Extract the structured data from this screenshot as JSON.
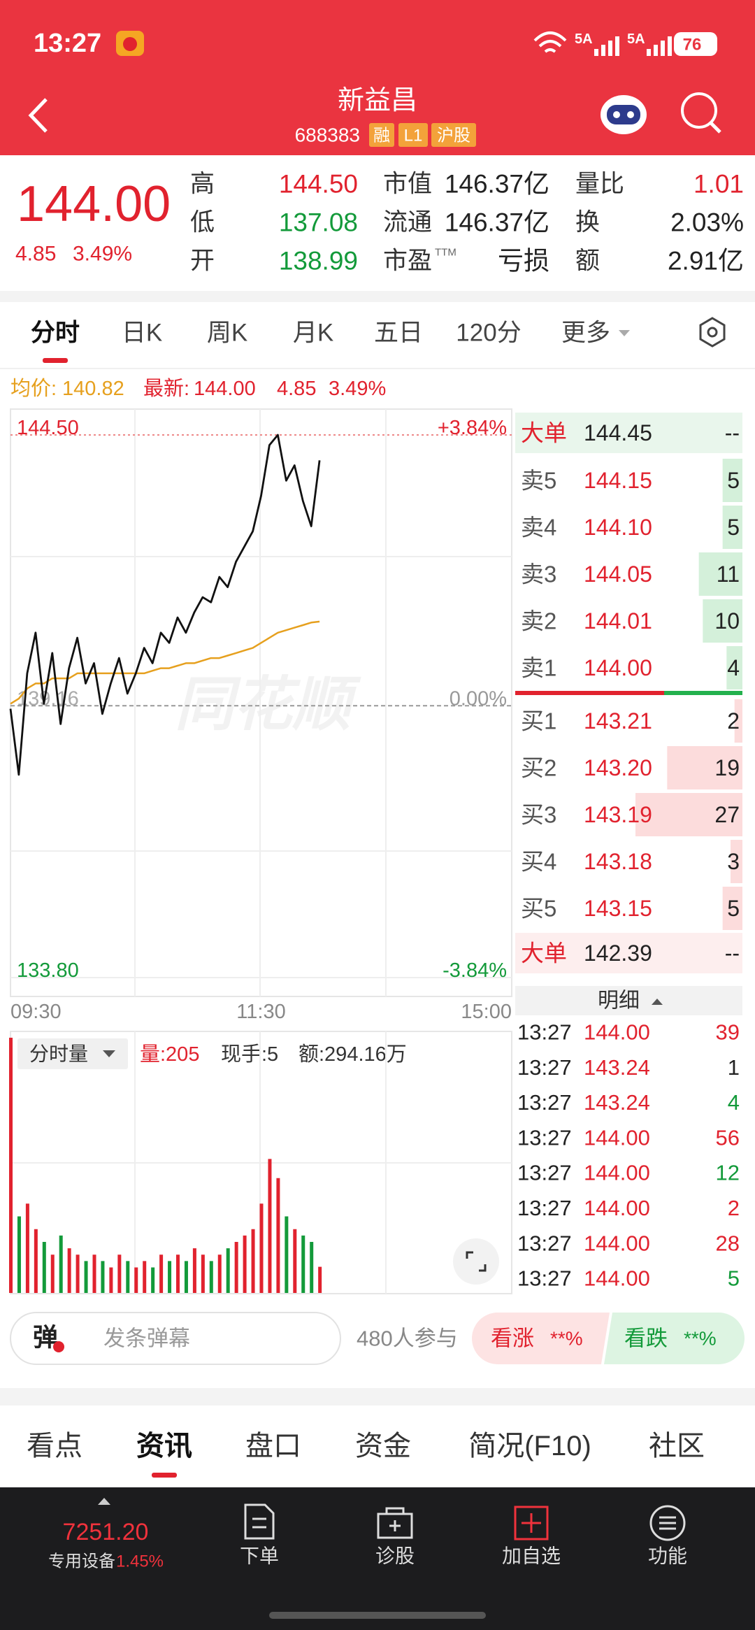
{
  "status_bar": {
    "time": "13:27",
    "network": [
      "5A",
      "5A"
    ],
    "battery": "76"
  },
  "header": {
    "title": "新益昌",
    "code": "688383",
    "tags": [
      "融",
      "L1",
      "沪股"
    ]
  },
  "quote": {
    "price": "144.00",
    "change": "4.85",
    "change_pct": "3.49%",
    "stats": [
      {
        "label": "高",
        "value": "144.50",
        "color": "#e1222e"
      },
      {
        "label": "低",
        "value": "137.08",
        "color": "#139a3a"
      },
      {
        "label": "开",
        "value": "138.99",
        "color": "#139a3a"
      },
      {
        "label": "市值",
        "value": "146.37亿",
        "color": "#222222"
      },
      {
        "label": "流通",
        "value": "146.37亿",
        "color": "#222222"
      },
      {
        "label": "市盈",
        "sup": "TTM",
        "value": "亏损",
        "color": "#222222"
      },
      {
        "label": "量比",
        "value": "1.01",
        "color": "#e1222e"
      },
      {
        "label": "换",
        "value": "2.03%",
        "color": "#222222"
      },
      {
        "label": "额",
        "value": "2.91亿",
        "color": "#222222"
      }
    ]
  },
  "tabs": {
    "items": [
      "分时",
      "日K",
      "周K",
      "月K",
      "五日",
      "120分",
      "更多"
    ],
    "active": 0
  },
  "intraday": {
    "legend": {
      "avg_label": "均价:",
      "avg": "140.82",
      "last_label": "最新:",
      "last": "144.00",
      "change": "4.85",
      "change_pct": "3.49%"
    },
    "watermark": "同花顺",
    "ylim": [
      133.8,
      144.5
    ],
    "yticks": [
      {
        "value": 144.5,
        "label": "144.50"
      },
      {
        "value": 139.16,
        "label": "139.16"
      },
      {
        "value": 133.8,
        "label": "133.80"
      }
    ],
    "pct_ticks": [
      {
        "value": 3.84,
        "label": "+3.84%"
      },
      {
        "value": 0,
        "label": "0.00%"
      },
      {
        "value": -3.84,
        "label": "-3.84%"
      }
    ],
    "xticks": [
      "09:30",
      "11:30",
      "15:00"
    ],
    "price": {
      "color": "#111111",
      "values": [
        139.1,
        137.8,
        139.8,
        140.6,
        139.2,
        140.2,
        138.8,
        139.9,
        140.5,
        139.6,
        140.0,
        139.0,
        139.6,
        140.1,
        139.4,
        139.8,
        140.3,
        140.0,
        140.6,
        140.4,
        140.9,
        140.6,
        141.0,
        141.3,
        141.2,
        141.7,
        141.5,
        142.0,
        142.3,
        142.6,
        143.3,
        144.3,
        144.5,
        143.6,
        143.9,
        143.2,
        142.7,
        144.0
      ]
    },
    "avg": {
      "color": "#e6a01e",
      "values": [
        139.2,
        139.3,
        139.5,
        139.6,
        139.6,
        139.7,
        139.7,
        139.7,
        139.8,
        139.8,
        139.8,
        139.8,
        139.8,
        139.8,
        139.8,
        139.8,
        139.8,
        139.85,
        139.9,
        139.9,
        139.95,
        140.0,
        140.0,
        140.05,
        140.1,
        140.1,
        140.15,
        140.2,
        140.25,
        140.3,
        140.4,
        140.5,
        140.6,
        140.65,
        140.7,
        140.75,
        140.8,
        140.82
      ]
    },
    "volume": {
      "menu": "分时量",
      "summary": [
        "量:205",
        "现手:5",
        "额:294.16万"
      ],
      "up_color": "#e1222e",
      "down_color": "#139a3a",
      "values": [
        2000,
        600,
        700,
        500,
        400,
        300,
        450,
        350,
        300,
        250,
        300,
        250,
        200,
        300,
        250,
        200,
        250,
        200,
        300,
        250,
        300,
        250,
        350,
        300,
        250,
        300,
        350,
        400,
        450,
        500,
        700,
        1050,
        900,
        600,
        500,
        450,
        400,
        205
      ]
    }
  },
  "order_book": {
    "big_sell": {
      "label": "大单",
      "price": "144.45",
      "volume": "--"
    },
    "asks": [
      {
        "label": "卖5",
        "price": "144.15",
        "volume": 5
      },
      {
        "label": "卖4",
        "price": "144.10",
        "volume": 5
      },
      {
        "label": "卖3",
        "price": "144.05",
        "volume": 11
      },
      {
        "label": "卖2",
        "price": "144.01",
        "volume": 10
      },
      {
        "label": "卖1",
        "price": "144.00",
        "volume": 4
      }
    ],
    "bids": [
      {
        "label": "买1",
        "price": "143.21",
        "volume": 2
      },
      {
        "label": "买2",
        "price": "143.20",
        "volume": 19
      },
      {
        "label": "买3",
        "price": "143.19",
        "volume": 27
      },
      {
        "label": "买4",
        "price": "143.18",
        "volume": 3
      },
      {
        "label": "买5",
        "price": "143.15",
        "volume": 5
      }
    ],
    "big_buy": {
      "label": "大单",
      "price": "142.39",
      "volume": "--"
    },
    "detail_title": "明细"
  },
  "trades": [
    {
      "time": "13:27",
      "price": "144.00",
      "volume": 39,
      "color": "#e1222e"
    },
    {
      "time": "13:27",
      "price": "143.24",
      "volume": 1,
      "color": "#222222"
    },
    {
      "time": "13:27",
      "price": "143.24",
      "volume": 4,
      "color": "#139a3a"
    },
    {
      "time": "13:27",
      "price": "144.00",
      "volume": 56,
      "color": "#e1222e"
    },
    {
      "time": "13:27",
      "price": "144.00",
      "volume": 12,
      "color": "#139a3a"
    },
    {
      "time": "13:27",
      "price": "144.00",
      "volume": 2,
      "color": "#e1222e"
    },
    {
      "time": "13:27",
      "price": "144.00",
      "volume": 28,
      "color": "#e1222e"
    },
    {
      "time": "13:27",
      "price": "144.00",
      "volume": 5,
      "color": "#139a3a"
    }
  ],
  "comment_bar": {
    "badge": "弹",
    "placeholder": "发条弹幕",
    "participants": "480人参与",
    "up": "看涨",
    "up_pct": "**%",
    "down": "看跌",
    "down_pct": "**%"
  },
  "sections": {
    "items": [
      "看点",
      "资讯",
      "盘口",
      "资金",
      "简况(F10)",
      "社区"
    ],
    "active": 1
  },
  "nav": {
    "index_value": "7251.20",
    "index_name": "专用设备",
    "index_change": "1.45%",
    "items": [
      "下单",
      "诊股",
      "加自选",
      "功能"
    ]
  }
}
